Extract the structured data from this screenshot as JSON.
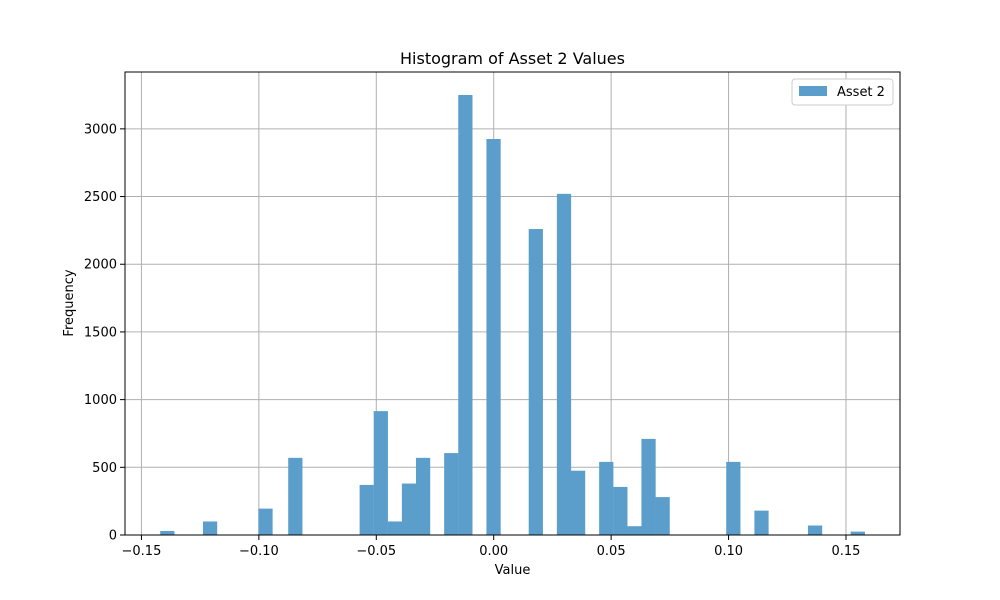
{
  "chart_data": {
    "type": "bar",
    "title": "Histogram of Asset 2 Values",
    "xlabel": "Value",
    "ylabel": "Frequency",
    "xlim": [
      -0.157,
      0.173
    ],
    "ylim": [
      0,
      3420
    ],
    "grid": true,
    "legend_position": "top-right",
    "xticks": [
      -0.15,
      -0.1,
      -0.05,
      0.0,
      0.05,
      0.1,
      0.15
    ],
    "xtick_labels": [
      "−0.15",
      "−0.10",
      "−0.05",
      "0.00",
      "0.05",
      "0.10",
      "0.15"
    ],
    "yticks": [
      0,
      500,
      1000,
      1500,
      2000,
      2500,
      3000
    ],
    "ytick_labels": [
      "0",
      "500",
      "1000",
      "1500",
      "2000",
      "2500",
      "3000"
    ],
    "bin_width": 0.00606,
    "series": [
      {
        "name": "Asset 2",
        "color": "#5b9ecb",
        "bins": [
          {
            "x0": -0.142,
            "count": 30
          },
          {
            "x0": -0.1238,
            "count": 100
          },
          {
            "x0": -0.1002,
            "count": 195
          },
          {
            "x0": -0.0875,
            "count": 570
          },
          {
            "x0": -0.0571,
            "count": 370
          },
          {
            "x0": -0.0511,
            "count": 915
          },
          {
            "x0": -0.0451,
            "count": 100
          },
          {
            "x0": -0.0391,
            "count": 380
          },
          {
            "x0": -0.0331,
            "count": 570
          },
          {
            "x0": -0.0211,
            "count": 605
          },
          {
            "x0": -0.0151,
            "count": 3250
          },
          {
            "x0": -0.0031,
            "count": 2925
          },
          {
            "x0": 0.0149,
            "count": 2260
          },
          {
            "x0": 0.0269,
            "count": 2520
          },
          {
            "x0": 0.0329,
            "count": 475
          },
          {
            "x0": 0.0449,
            "count": 540
          },
          {
            "x0": 0.0509,
            "count": 355
          },
          {
            "x0": 0.0569,
            "count": 65
          },
          {
            "x0": 0.0629,
            "count": 710
          },
          {
            "x0": 0.0689,
            "count": 280
          },
          {
            "x0": 0.099,
            "count": 540
          },
          {
            "x0": 0.111,
            "count": 180
          },
          {
            "x0": 0.1338,
            "count": 70
          },
          {
            "x0": 0.152,
            "count": 25
          }
        ]
      }
    ]
  }
}
